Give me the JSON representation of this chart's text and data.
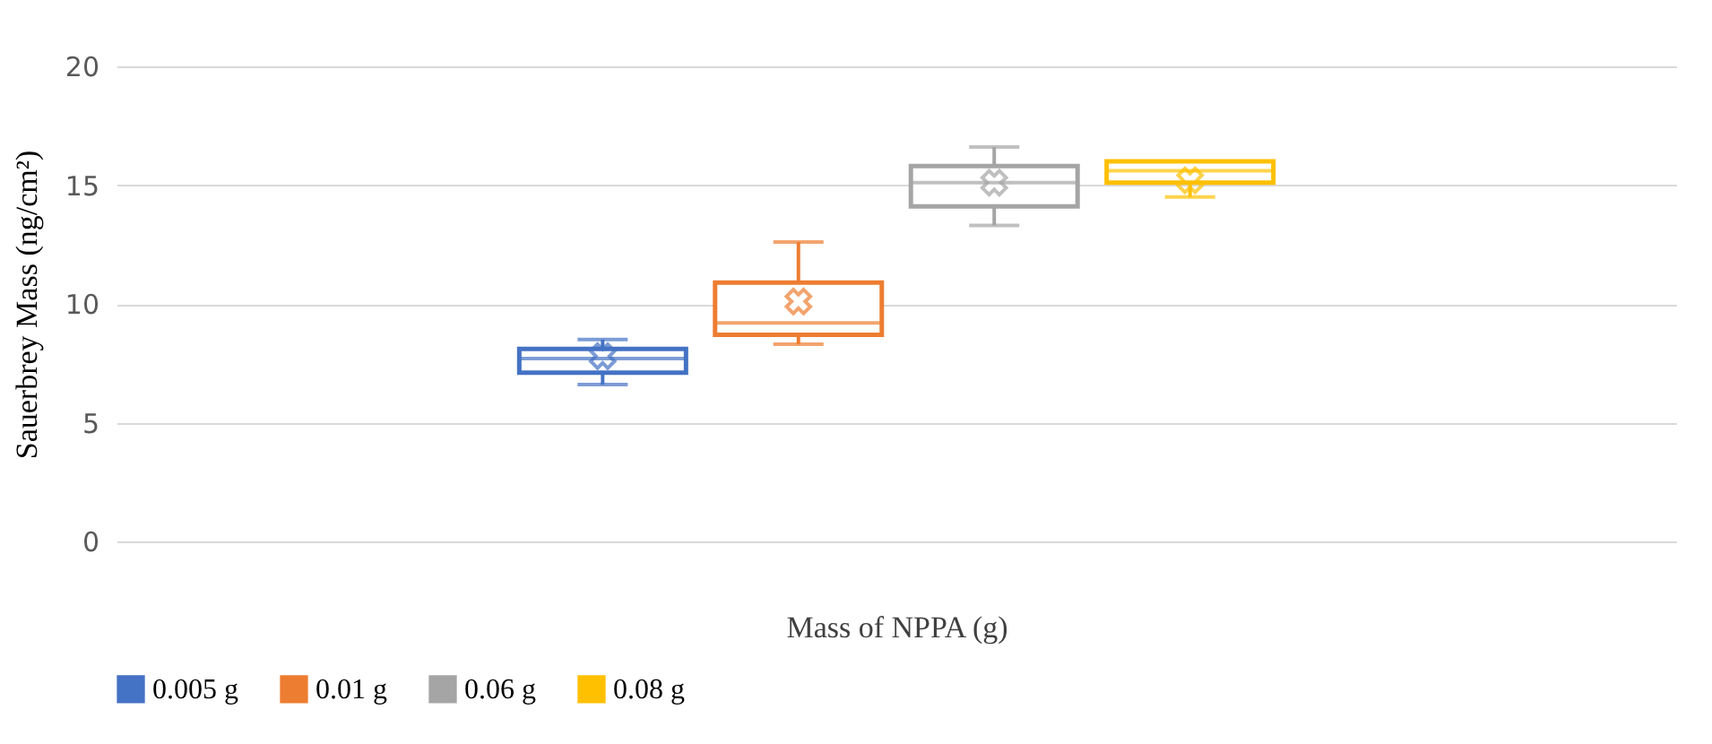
{
  "chart_data": {
    "type": "box",
    "categories": [
      null
    ],
    "xlabel": "Mass of NPPA (g)",
    "ylabel": "Sauerbrey Mass (ng/cm²)",
    "ylim": [
      0,
      20
    ],
    "yticks": [
      0,
      5,
      10,
      15,
      20
    ],
    "grid": "y",
    "legend": "bottom",
    "marker": "cross",
    "series": [
      {
        "name": "0.005 g",
        "color": "#4472c4",
        "boxes": [
          {
            "low": 6.6,
            "q1": 7.1,
            "median": 7.7,
            "q3": 8.1,
            "high": 8.5,
            "mean": 7.8
          }
        ]
      },
      {
        "name": "0.01 g",
        "color": "#ed7d31",
        "boxes": [
          {
            "low": 8.3,
            "q1": 8.7,
            "median": 9.2,
            "q3": 10.9,
            "high": 12.6,
            "mean": 10.1
          }
        ]
      },
      {
        "name": "0.06 g",
        "color": "#a5a5a5",
        "boxes": [
          {
            "low": 13.3,
            "q1": 14.1,
            "median": 15.1,
            "q3": 15.8,
            "high": 16.6,
            "mean": 15.1
          }
        ]
      },
      {
        "name": "0.08 g",
        "color": "#ffc000",
        "boxes": [
          {
            "low": 14.5,
            "q1": 15.1,
            "median": 15.6,
            "q3": 16.0,
            "high": 16.0,
            "mean": 15.2
          }
        ]
      }
    ]
  }
}
